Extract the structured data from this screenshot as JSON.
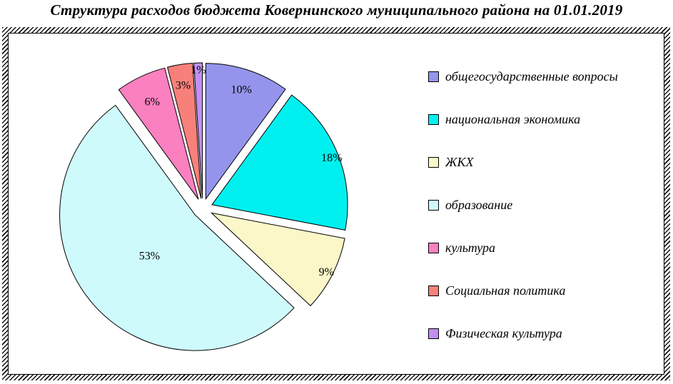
{
  "title": "Структура расходов бюджета Ковернинского муниципального района на 01.01.2019",
  "chart_data": {
    "type": "pie",
    "title": "Структура расходов бюджета Ковернинского муниципального района на 01.01.2019",
    "unit": "percent",
    "exploded": true,
    "start_angle_deg": 0,
    "direction": "clockwise",
    "legend_position": "right",
    "slices": [
      {
        "label": "общегосударственные вопросы",
        "value": 10,
        "pct_label": "10%",
        "color": "#9494EC"
      },
      {
        "label": "национальная экономика",
        "value": 18,
        "pct_label": "18%",
        "color": "#00F0F0"
      },
      {
        "label": "ЖКХ",
        "value": 9,
        "pct_label": "9%",
        "color": "#FBF7C9"
      },
      {
        "label": "образование",
        "value": 53,
        "pct_label": "53%",
        "color": "#CFFAFC"
      },
      {
        "label": "культура",
        "value": 6,
        "pct_label": "6%",
        "color": "#FA80C0"
      },
      {
        "label": "Социальная политика",
        "value": 3,
        "pct_label": "3%",
        "color": "#F8807A"
      },
      {
        "label": "Физическая культура",
        "value": 1,
        "pct_label": "1%",
        "color": "#C28FF2"
      }
    ]
  }
}
